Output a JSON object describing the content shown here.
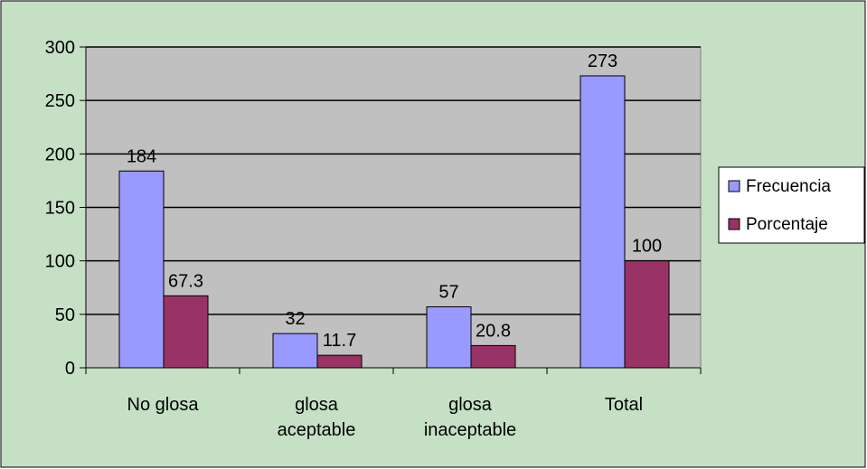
{
  "colors": {
    "chart_area": "#c5e0c5",
    "plot_area": "#c0c0c0",
    "gridline": "#000000",
    "frecuencia": "#9999ff",
    "porcentaje": "#993366"
  },
  "chart_data": {
    "type": "bar",
    "title": "",
    "xlabel": "",
    "ylabel": "",
    "categories": [
      [
        "No glosa"
      ],
      [
        "glosa",
        "aceptable"
      ],
      [
        "glosa",
        "inaceptable"
      ],
      [
        "Total"
      ]
    ],
    "series": [
      {
        "name": "Frecuencia",
        "values": [
          184,
          32,
          57,
          273
        ],
        "labels": [
          "184",
          "32",
          "57",
          "273"
        ],
        "color": "#9999ff"
      },
      {
        "name": "Porcentaje",
        "values": [
          67.3,
          11.7,
          20.8,
          100
        ],
        "labels": [
          "67.3",
          "11.7",
          "20.8",
          "100"
        ],
        "color": "#993366"
      }
    ],
    "ylim": [
      0,
      300
    ],
    "yticks": [
      0,
      50,
      100,
      150,
      200,
      250,
      300
    ],
    "grid": true,
    "legend": "right"
  }
}
